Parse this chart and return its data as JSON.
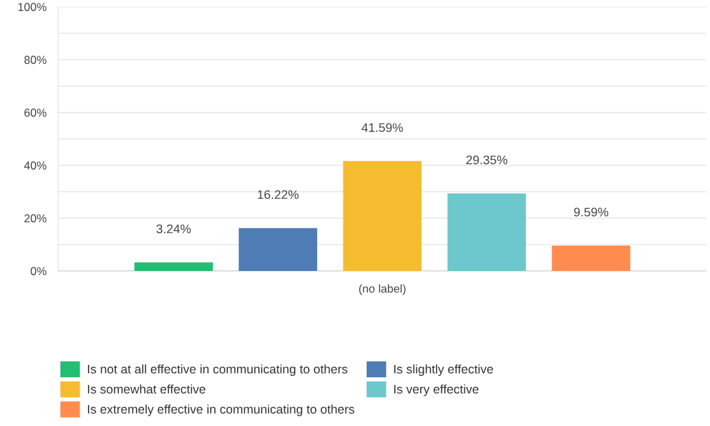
{
  "chart_data": {
    "type": "bar",
    "categories": [
      "(no label)"
    ],
    "series": [
      {
        "name": "Is not at all effective in communicating to others",
        "color": "#21bf73",
        "values": [
          3.24
        ],
        "value_labels": [
          "3.24%"
        ]
      },
      {
        "name": "Is slightly effective",
        "color": "#507cb6",
        "values": [
          16.22
        ],
        "value_labels": [
          "16.22%"
        ]
      },
      {
        "name": "Is somewhat effective",
        "color": "#f5bc2f",
        "values": [
          41.59
        ],
        "value_labels": [
          "41.59%"
        ]
      },
      {
        "name": "Is very effective",
        "color": "#6cc8cc",
        "values": [
          29.35
        ],
        "value_labels": [
          "29.35%"
        ]
      },
      {
        "name": "Is extremely effective in communicating to others",
        "color": "#ff8b4f",
        "values": [
          9.59
        ],
        "value_labels": [
          "9.59%"
        ]
      }
    ],
    "ylim": [
      0,
      100
    ],
    "yticks": [
      {
        "value": 0,
        "label": "0%"
      },
      {
        "value": 10,
        "label": null
      },
      {
        "value": 20,
        "label": "20%"
      },
      {
        "value": 30,
        "label": null
      },
      {
        "value": 40,
        "label": "40%"
      },
      {
        "value": 50,
        "label": null
      },
      {
        "value": 60,
        "label": "60%"
      },
      {
        "value": 70,
        "label": null
      },
      {
        "value": 80,
        "label": "80%"
      },
      {
        "value": 90,
        "label": null
      },
      {
        "value": 100,
        "label": "100%"
      }
    ],
    "grid": "y",
    "legend": "bottom"
  }
}
